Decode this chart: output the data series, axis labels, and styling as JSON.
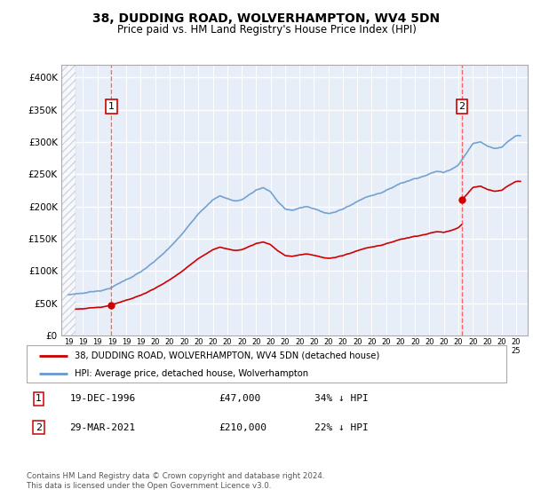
{
  "title_line1": "38, DUDDING ROAD, WOLVERHAMPTON, WV4 5DN",
  "title_line2": "Price paid vs. HM Land Registry's House Price Index (HPI)",
  "ylim": [
    0,
    420000
  ],
  "yticks": [
    0,
    50000,
    100000,
    150000,
    200000,
    250000,
    300000,
    350000,
    400000
  ],
  "ytick_labels": [
    "£0",
    "£50K",
    "£100K",
    "£150K",
    "£200K",
    "£250K",
    "£300K",
    "£350K",
    "£400K"
  ],
  "hpi_color": "#6699cc",
  "price_color": "#cc0000",
  "vline_color": "#ff5555",
  "marker_color": "#cc0000",
  "sale1_year": 1996.97,
  "sale1_price": 47000,
  "sale2_year": 2021.24,
  "sale2_price": 210000,
  "legend_entry1": "38, DUDDING ROAD, WOLVERHAMPTON, WV4 5DN (detached house)",
  "legend_entry2": "HPI: Average price, detached house, Wolverhampton",
  "annotation1_date": "19-DEC-1996",
  "annotation1_price": "£47,000",
  "annotation1_hpi": "34% ↓ HPI",
  "annotation2_date": "29-MAR-2021",
  "annotation2_price": "£210,000",
  "annotation2_hpi": "22% ↓ HPI",
  "footer": "Contains HM Land Registry data © Crown copyright and database right 2024.\nThis data is licensed under the Open Government Licence v3.0.",
  "plot_bg_color": "#e8eef8",
  "xlim_start": 1993.5,
  "xlim_end": 2025.8,
  "hpi_data": {
    "years": [
      1994.0,
      1994.5,
      1995.0,
      1995.5,
      1996.0,
      1996.5,
      1997.0,
      1997.5,
      1998.0,
      1998.5,
      1999.0,
      1999.5,
      2000.0,
      2000.5,
      2001.0,
      2001.5,
      2002.0,
      2002.5,
      2003.0,
      2003.5,
      2004.0,
      2004.5,
      2005.0,
      2005.5,
      2006.0,
      2006.5,
      2007.0,
      2007.5,
      2008.0,
      2008.5,
      2009.0,
      2009.5,
      2010.0,
      2010.5,
      2011.0,
      2011.5,
      2012.0,
      2012.5,
      2013.0,
      2013.5,
      2014.0,
      2014.5,
      2015.0,
      2015.5,
      2016.0,
      2016.5,
      2017.0,
      2017.5,
      2018.0,
      2018.5,
      2019.0,
      2019.5,
      2020.0,
      2020.5,
      2021.0,
      2021.5,
      2022.0,
      2022.5,
      2023.0,
      2023.5,
      2024.0,
      2024.5,
      2025.0
    ],
    "values": [
      63000,
      65000,
      66000,
      68000,
      70000,
      72000,
      76000,
      82000,
      88000,
      94000,
      100000,
      108000,
      116000,
      126000,
      136000,
      148000,
      160000,
      175000,
      190000,
      202000,
      212000,
      218000,
      214000,
      210000,
      212000,
      220000,
      228000,
      232000,
      225000,
      210000,
      198000,
      196000,
      200000,
      202000,
      198000,
      194000,
      192000,
      194000,
      198000,
      204000,
      210000,
      216000,
      220000,
      224000,
      228000,
      234000,
      240000,
      244000,
      248000,
      252000,
      256000,
      260000,
      258000,
      264000,
      272000,
      288000,
      304000,
      308000,
      302000,
      298000,
      300000,
      310000,
      318000
    ]
  }
}
